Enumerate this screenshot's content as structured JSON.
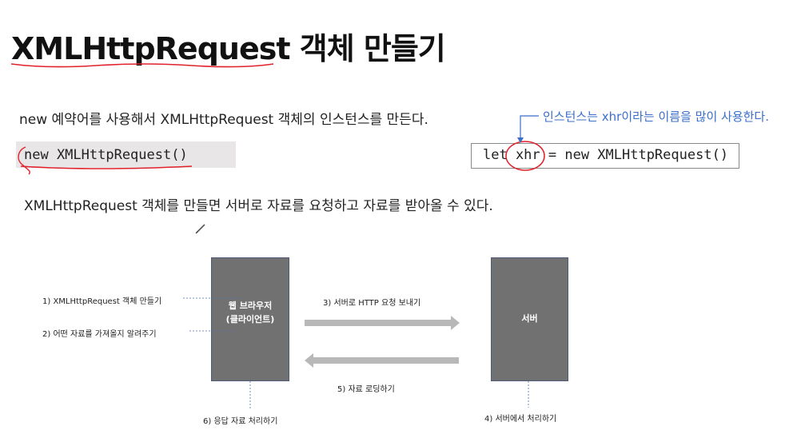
{
  "slide": {
    "title": "XMLHttpRequest 객체 만들기",
    "description_1": "new 예약어를 사용해서 XMLHttpRequest 객체의 인스턴스를 만든다.",
    "code_left": "new XMLHttpRequest()",
    "callout": "인스턴스는 xhr이라는 이름을 많이 사용한다.",
    "code_right": "let xhr = new XMLHttpRequest()",
    "description_2": "XMLHttpRequest 객체를 만들면 서버로 자료를 요청하고 자료를 받아올 수 있다."
  },
  "diagram": {
    "step1": "1)    XMLHttpRequest 객체 만들기",
    "step2": "2)    어떤 자료를 가져올지 알려주기",
    "browser_label_line1": "웹 브라우저",
    "browser_label_line2": "(클라이언트)",
    "step3": "3) 서버로 HTTP 요청 보내기",
    "server_label": "서버",
    "step5": "5) 자료 로딩하기",
    "step6": "6) 응답 자료 처리하기",
    "step4": "4) 서버에서 처리하기"
  },
  "colors": {
    "annotation_red": "#e0202a",
    "callout_blue": "#3b6fcb",
    "box_gray": "#717171",
    "arrow_gray": "#b8b8b8"
  }
}
